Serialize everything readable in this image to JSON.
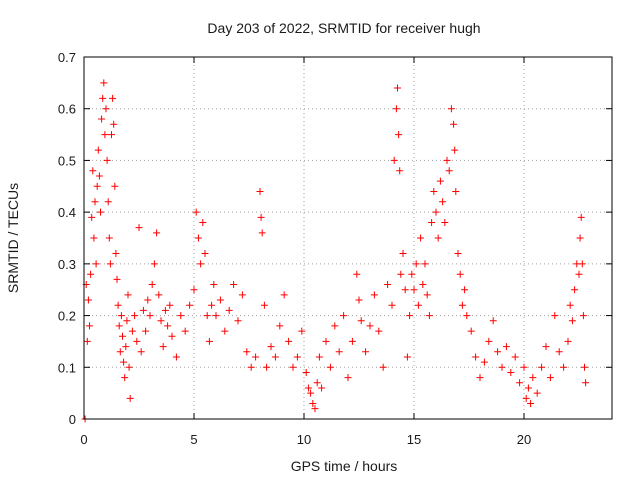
{
  "chart_data": {
    "type": "scatter",
    "title": "Day 203 of 2022, SRMTID for receiver hugh",
    "xlabel": "GPS time / hours",
    "ylabel": "SRMTID / TECUs",
    "xlim": [
      0,
      24
    ],
    "ylim": [
      0,
      0.7
    ],
    "xticks": [
      0,
      5,
      10,
      15,
      20
    ],
    "yticks": [
      0,
      0.1,
      0.2,
      0.3,
      0.4,
      0.5,
      0.6,
      0.7
    ],
    "xtick_labels": [
      "0",
      "5",
      "10",
      "15",
      "20"
    ],
    "ytick_labels": [
      "0",
      "0.1",
      "0.2",
      "0.3",
      "0.4",
      "0.5",
      "0.6",
      "0.7"
    ],
    "grid": true,
    "marker": "+",
    "color": "#ff0000",
    "series": [
      {
        "name": "SRMTID",
        "points": [
          [
            0.05,
            0.0
          ],
          [
            0.1,
            0.26
          ],
          [
            0.15,
            0.15
          ],
          [
            0.2,
            0.23
          ],
          [
            0.25,
            0.18
          ],
          [
            0.3,
            0.28
          ],
          [
            0.35,
            0.39
          ],
          [
            0.4,
            0.48
          ],
          [
            0.45,
            0.35
          ],
          [
            0.5,
            0.42
          ],
          [
            0.55,
            0.3
          ],
          [
            0.6,
            0.45
          ],
          [
            0.65,
            0.52
          ],
          [
            0.7,
            0.47
          ],
          [
            0.75,
            0.4
          ],
          [
            0.8,
            0.58
          ],
          [
            0.85,
            0.62
          ],
          [
            0.9,
            0.65
          ],
          [
            0.95,
            0.55
          ],
          [
            1.0,
            0.6
          ],
          [
            1.05,
            0.5
          ],
          [
            1.1,
            0.42
          ],
          [
            1.15,
            0.35
          ],
          [
            1.2,
            0.3
          ],
          [
            1.25,
            0.55
          ],
          [
            1.3,
            0.62
          ],
          [
            1.35,
            0.57
          ],
          [
            1.4,
            0.45
          ],
          [
            1.45,
            0.32
          ],
          [
            1.5,
            0.27
          ],
          [
            1.55,
            0.22
          ],
          [
            1.6,
            0.18
          ],
          [
            1.65,
            0.13
          ],
          [
            1.7,
            0.2
          ],
          [
            1.75,
            0.16
          ],
          [
            1.8,
            0.11
          ],
          [
            1.85,
            0.08
          ],
          [
            1.9,
            0.14
          ],
          [
            1.95,
            0.19
          ],
          [
            2.0,
            0.24
          ],
          [
            2.05,
            0.1
          ],
          [
            2.1,
            0.04
          ],
          [
            2.2,
            0.17
          ],
          [
            2.3,
            0.2
          ],
          [
            2.4,
            0.15
          ],
          [
            2.5,
            0.37
          ],
          [
            2.6,
            0.13
          ],
          [
            2.7,
            0.21
          ],
          [
            2.8,
            0.17
          ],
          [
            2.9,
            0.23
          ],
          [
            3.0,
            0.2
          ],
          [
            3.1,
            0.26
          ],
          [
            3.2,
            0.3
          ],
          [
            3.3,
            0.36
          ],
          [
            3.4,
            0.24
          ],
          [
            3.5,
            0.19
          ],
          [
            3.6,
            0.14
          ],
          [
            3.7,
            0.21
          ],
          [
            3.8,
            0.18
          ],
          [
            3.9,
            0.22
          ],
          [
            4.0,
            0.16
          ],
          [
            4.2,
            0.12
          ],
          [
            4.4,
            0.2
          ],
          [
            4.6,
            0.17
          ],
          [
            4.8,
            0.22
          ],
          [
            5.0,
            0.25
          ],
          [
            5.1,
            0.4
          ],
          [
            5.2,
            0.35
          ],
          [
            5.3,
            0.3
          ],
          [
            5.4,
            0.38
          ],
          [
            5.5,
            0.32
          ],
          [
            5.6,
            0.2
          ],
          [
            5.7,
            0.15
          ],
          [
            5.8,
            0.22
          ],
          [
            5.9,
            0.26
          ],
          [
            6.0,
            0.2
          ],
          [
            6.2,
            0.23
          ],
          [
            6.4,
            0.17
          ],
          [
            6.6,
            0.21
          ],
          [
            6.8,
            0.26
          ],
          [
            7.0,
            0.19
          ],
          [
            7.2,
            0.24
          ],
          [
            7.4,
            0.13
          ],
          [
            7.6,
            0.1
          ],
          [
            7.8,
            0.12
          ],
          [
            8.0,
            0.44
          ],
          [
            8.05,
            0.39
          ],
          [
            8.1,
            0.36
          ],
          [
            8.2,
            0.22
          ],
          [
            8.3,
            0.1
          ],
          [
            8.5,
            0.14
          ],
          [
            8.7,
            0.12
          ],
          [
            8.9,
            0.18
          ],
          [
            9.1,
            0.24
          ],
          [
            9.3,
            0.15
          ],
          [
            9.5,
            0.1
          ],
          [
            9.7,
            0.12
          ],
          [
            9.9,
            0.17
          ],
          [
            10.1,
            0.09
          ],
          [
            10.2,
            0.06
          ],
          [
            10.3,
            0.05
          ],
          [
            10.4,
            0.03
          ],
          [
            10.5,
            0.02
          ],
          [
            10.6,
            0.07
          ],
          [
            10.7,
            0.12
          ],
          [
            10.8,
            0.06
          ],
          [
            11.0,
            0.15
          ],
          [
            11.2,
            0.1
          ],
          [
            11.4,
            0.18
          ],
          [
            11.6,
            0.13
          ],
          [
            11.8,
            0.2
          ],
          [
            12.0,
            0.08
          ],
          [
            12.2,
            0.15
          ],
          [
            12.4,
            0.28
          ],
          [
            12.5,
            0.23
          ],
          [
            12.6,
            0.19
          ],
          [
            12.8,
            0.13
          ],
          [
            13.0,
            0.18
          ],
          [
            13.2,
            0.24
          ],
          [
            13.4,
            0.17
          ],
          [
            13.6,
            0.1
          ],
          [
            13.8,
            0.26
          ],
          [
            14.0,
            0.22
          ],
          [
            14.1,
            0.5
          ],
          [
            14.2,
            0.6
          ],
          [
            14.25,
            0.64
          ],
          [
            14.3,
            0.55
          ],
          [
            14.35,
            0.48
          ],
          [
            14.4,
            0.28
          ],
          [
            14.5,
            0.32
          ],
          [
            14.6,
            0.25
          ],
          [
            14.7,
            0.12
          ],
          [
            14.8,
            0.2
          ],
          [
            14.9,
            0.28
          ],
          [
            15.0,
            0.25
          ],
          [
            15.1,
            0.3
          ],
          [
            15.2,
            0.22
          ],
          [
            15.3,
            0.35
          ],
          [
            15.4,
            0.26
          ],
          [
            15.5,
            0.3
          ],
          [
            15.6,
            0.24
          ],
          [
            15.7,
            0.2
          ],
          [
            15.8,
            0.38
          ],
          [
            15.9,
            0.44
          ],
          [
            16.0,
            0.4
          ],
          [
            16.1,
            0.35
          ],
          [
            16.2,
            0.46
          ],
          [
            16.3,
            0.42
          ],
          [
            16.4,
            0.38
          ],
          [
            16.5,
            0.5
          ],
          [
            16.6,
            0.48
          ],
          [
            16.7,
            0.6
          ],
          [
            16.8,
            0.57
          ],
          [
            16.85,
            0.52
          ],
          [
            16.9,
            0.44
          ],
          [
            17.0,
            0.32
          ],
          [
            17.1,
            0.28
          ],
          [
            17.2,
            0.22
          ],
          [
            17.3,
            0.25
          ],
          [
            17.4,
            0.2
          ],
          [
            17.6,
            0.17
          ],
          [
            17.8,
            0.12
          ],
          [
            18.0,
            0.08
          ],
          [
            18.2,
            0.11
          ],
          [
            18.4,
            0.15
          ],
          [
            18.6,
            0.19
          ],
          [
            18.8,
            0.13
          ],
          [
            19.0,
            0.1
          ],
          [
            19.2,
            0.14
          ],
          [
            19.4,
            0.09
          ],
          [
            19.6,
            0.12
          ],
          [
            19.8,
            0.07
          ],
          [
            20.0,
            0.1
          ],
          [
            20.1,
            0.04
          ],
          [
            20.2,
            0.06
          ],
          [
            20.3,
            0.03
          ],
          [
            20.4,
            0.08
          ],
          [
            20.6,
            0.05
          ],
          [
            20.8,
            0.1
          ],
          [
            21.0,
            0.14
          ],
          [
            21.2,
            0.08
          ],
          [
            21.4,
            0.2
          ],
          [
            21.6,
            0.13
          ],
          [
            21.8,
            0.1
          ],
          [
            22.0,
            0.15
          ],
          [
            22.1,
            0.22
          ],
          [
            22.2,
            0.19
          ],
          [
            22.3,
            0.25
          ],
          [
            22.4,
            0.3
          ],
          [
            22.5,
            0.28
          ],
          [
            22.55,
            0.35
          ],
          [
            22.6,
            0.39
          ],
          [
            22.65,
            0.3
          ],
          [
            22.7,
            0.2
          ],
          [
            22.75,
            0.1
          ],
          [
            22.8,
            0.07
          ]
        ]
      }
    ]
  }
}
